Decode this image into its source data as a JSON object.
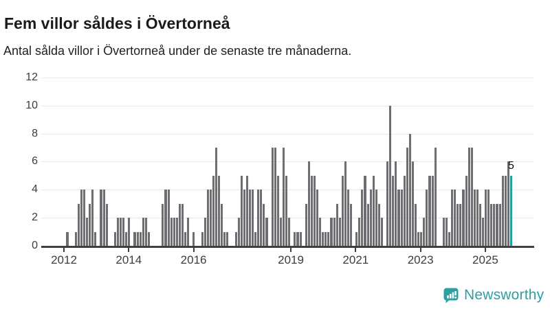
{
  "header": {
    "title": "Fem villor såldes i Övertorneå",
    "subtitle": "Antal sålda villor i Övertorneå under de senaste tre månaderna."
  },
  "chart_data": {
    "type": "bar",
    "title": "Fem villor såldes i Övertorneå",
    "subtitle": "Antal sålda villor i Övertorneå under de senaste tre månaderna.",
    "xlabel": "",
    "ylabel": "",
    "ylim": [
      0,
      12
    ],
    "y_ticks": [
      0,
      2,
      4,
      6,
      8,
      10,
      12
    ],
    "x_tick_labels": [
      "2012",
      "2014",
      "2016",
      "2019",
      "2021",
      "2023",
      "2025"
    ],
    "x_tick_years": [
      2012,
      2014,
      2016,
      2019,
      2021,
      2023,
      2025
    ],
    "grid": "horizontal",
    "legend": "none",
    "period_note": "monthly values, ~Mar 2012 to late 2025",
    "values": [
      1,
      0,
      0,
      1,
      3,
      4,
      4,
      2,
      3,
      4,
      1,
      0,
      4,
      4,
      3,
      0,
      0,
      1,
      2,
      2,
      2,
      1,
      2,
      0,
      1,
      1,
      1,
      2,
      2,
      1,
      0,
      0,
      0,
      0,
      3,
      4,
      4,
      2,
      2,
      2,
      3,
      3,
      1,
      2,
      0,
      1,
      0,
      0,
      1,
      2,
      4,
      4,
      5,
      7,
      5,
      3,
      1,
      1,
      0,
      0,
      1,
      2,
      5,
      4,
      5,
      4,
      4,
      1,
      4,
      4,
      3,
      2,
      0,
      7,
      7,
      5,
      2,
      7,
      5,
      2,
      0,
      1,
      1,
      1,
      0,
      3,
      6,
      5,
      5,
      4,
      2,
      1,
      1,
      1,
      2,
      2,
      3,
      2,
      5,
      6,
      4,
      3,
      0,
      1,
      2,
      4,
      5,
      3,
      4,
      5,
      4,
      3,
      2,
      0,
      6,
      10,
      5,
      6,
      4,
      4,
      5,
      7,
      8,
      6,
      3,
      1,
      1,
      2,
      4,
      5,
      5,
      7,
      0,
      0,
      2,
      2,
      1,
      4,
      4,
      3,
      3,
      4,
      5,
      7,
      7,
      4,
      4,
      3,
      2,
      4,
      4,
      3,
      3,
      3,
      3,
      5,
      5,
      6,
      5
    ],
    "highlight_last": true,
    "last_value_label": "5",
    "bar_color": "#6d6d72",
    "highlight_color": "#1fa1a1"
  },
  "footer": {
    "brand": "Newsworthy",
    "brand_color": "#2d9fa0"
  }
}
